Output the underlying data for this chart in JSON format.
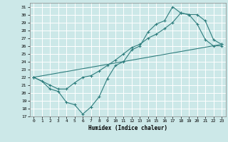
{
  "xlabel": "Humidex (Indice chaleur)",
  "bg_color": "#cce8e8",
  "grid_color": "#ffffff",
  "line_color": "#2e7d7d",
  "xlim": [
    -0.5,
    23.5
  ],
  "ylim": [
    17,
    31.5
  ],
  "xticks": [
    0,
    1,
    2,
    3,
    4,
    5,
    6,
    7,
    8,
    9,
    10,
    11,
    12,
    13,
    14,
    15,
    16,
    17,
    18,
    19,
    20,
    21,
    22,
    23
  ],
  "yticks": [
    17,
    18,
    19,
    20,
    21,
    22,
    23,
    24,
    25,
    26,
    27,
    28,
    29,
    30,
    31
  ],
  "line1_x": [
    0,
    1,
    2,
    3,
    4,
    5,
    6,
    7,
    8,
    9,
    10,
    11,
    12,
    13,
    14,
    15,
    16,
    17,
    18,
    19,
    20,
    21,
    22,
    23
  ],
  "line1_y": [
    22.0,
    21.5,
    20.5,
    20.2,
    18.8,
    18.5,
    17.3,
    18.2,
    19.5,
    21.8,
    23.5,
    24.0,
    25.5,
    26.0,
    27.8,
    28.8,
    29.2,
    31.0,
    30.2,
    30.0,
    28.8,
    26.8,
    26.0,
    26.0
  ],
  "line2_x": [
    0,
    2,
    3,
    4,
    5,
    6,
    7,
    8,
    9,
    10,
    11,
    12,
    13,
    14,
    15,
    16,
    17,
    18,
    19,
    20,
    21,
    22,
    23
  ],
  "line2_y": [
    22.0,
    21.0,
    20.5,
    20.5,
    21.3,
    22.0,
    22.2,
    22.8,
    23.5,
    24.2,
    25.0,
    25.8,
    26.2,
    27.0,
    27.5,
    28.2,
    29.0,
    30.2,
    30.0,
    30.0,
    29.2,
    26.8,
    26.2
  ],
  "line3_x": [
    0,
    23
  ],
  "line3_y": [
    22.0,
    26.2
  ]
}
